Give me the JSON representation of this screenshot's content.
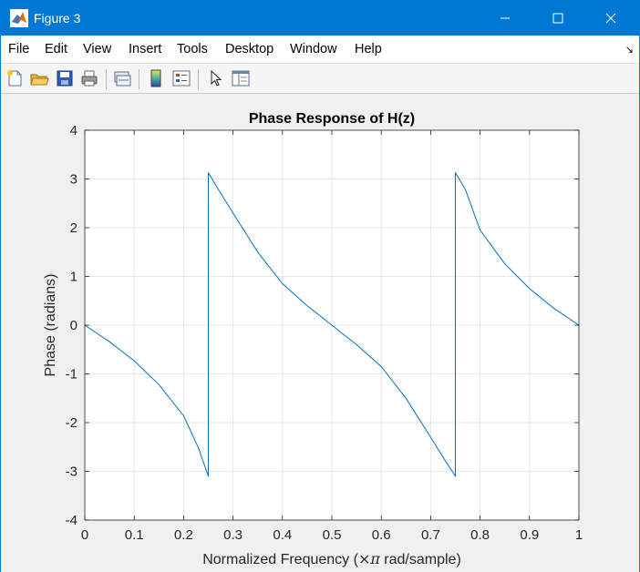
{
  "window": {
    "title": "Figure 3"
  },
  "menu": [
    "File",
    "Edit",
    "View",
    "Insert",
    "Tools",
    "Desktop",
    "Window",
    "Help"
  ],
  "toolbar": [
    "new-figure-icon",
    "open-file-icon",
    "save-icon",
    "print-icon",
    "link-plot-icon",
    "colorbar-icon",
    "legend-icon",
    "pointer-icon",
    "property-inspector-icon"
  ],
  "colors": {
    "titlebar": "#0078d4",
    "line": "#0072bd"
  },
  "chart_data": {
    "type": "line",
    "title": "Phase Response of H(z)",
    "xlabel_prefix": "Normalized Frequency (",
    "xlabel_pi": "×π",
    "xlabel_suffix": " rad/sample)",
    "ylabel": "Phase (radians)",
    "xlim": [
      0,
      1
    ],
    "ylim": [
      -4,
      4
    ],
    "xticks": [
      "0",
      "0.1",
      "0.2",
      "0.3",
      "0.4",
      "0.5",
      "0.6",
      "0.7",
      "0.8",
      "0.9",
      "1"
    ],
    "yticks": [
      "4",
      "3",
      "2",
      "1",
      "0",
      "-1",
      "-2",
      "-3",
      "-4"
    ],
    "grid": true,
    "series": [
      {
        "x": [
          0,
          0.05,
          0.1,
          0.15,
          0.2,
          0.23,
          0.25,
          0.25,
          0.27,
          0.3,
          0.35,
          0.4,
          0.45,
          0.5,
          0.55,
          0.6,
          0.65,
          0.7,
          0.73,
          0.75,
          0.75,
          0.77,
          0.8,
          0.85,
          0.9,
          0.95,
          1
        ],
        "y": [
          0,
          -0.34,
          -0.73,
          -1.22,
          -1.86,
          -2.52,
          -3.1,
          3.13,
          2.79,
          2.3,
          1.5,
          0.85,
          0.4,
          0,
          -0.4,
          -0.85,
          -1.5,
          -2.3,
          -2.79,
          -3.1,
          3.13,
          2.79,
          1.95,
          1.26,
          0.75,
          0.34,
          0
        ]
      }
    ]
  }
}
